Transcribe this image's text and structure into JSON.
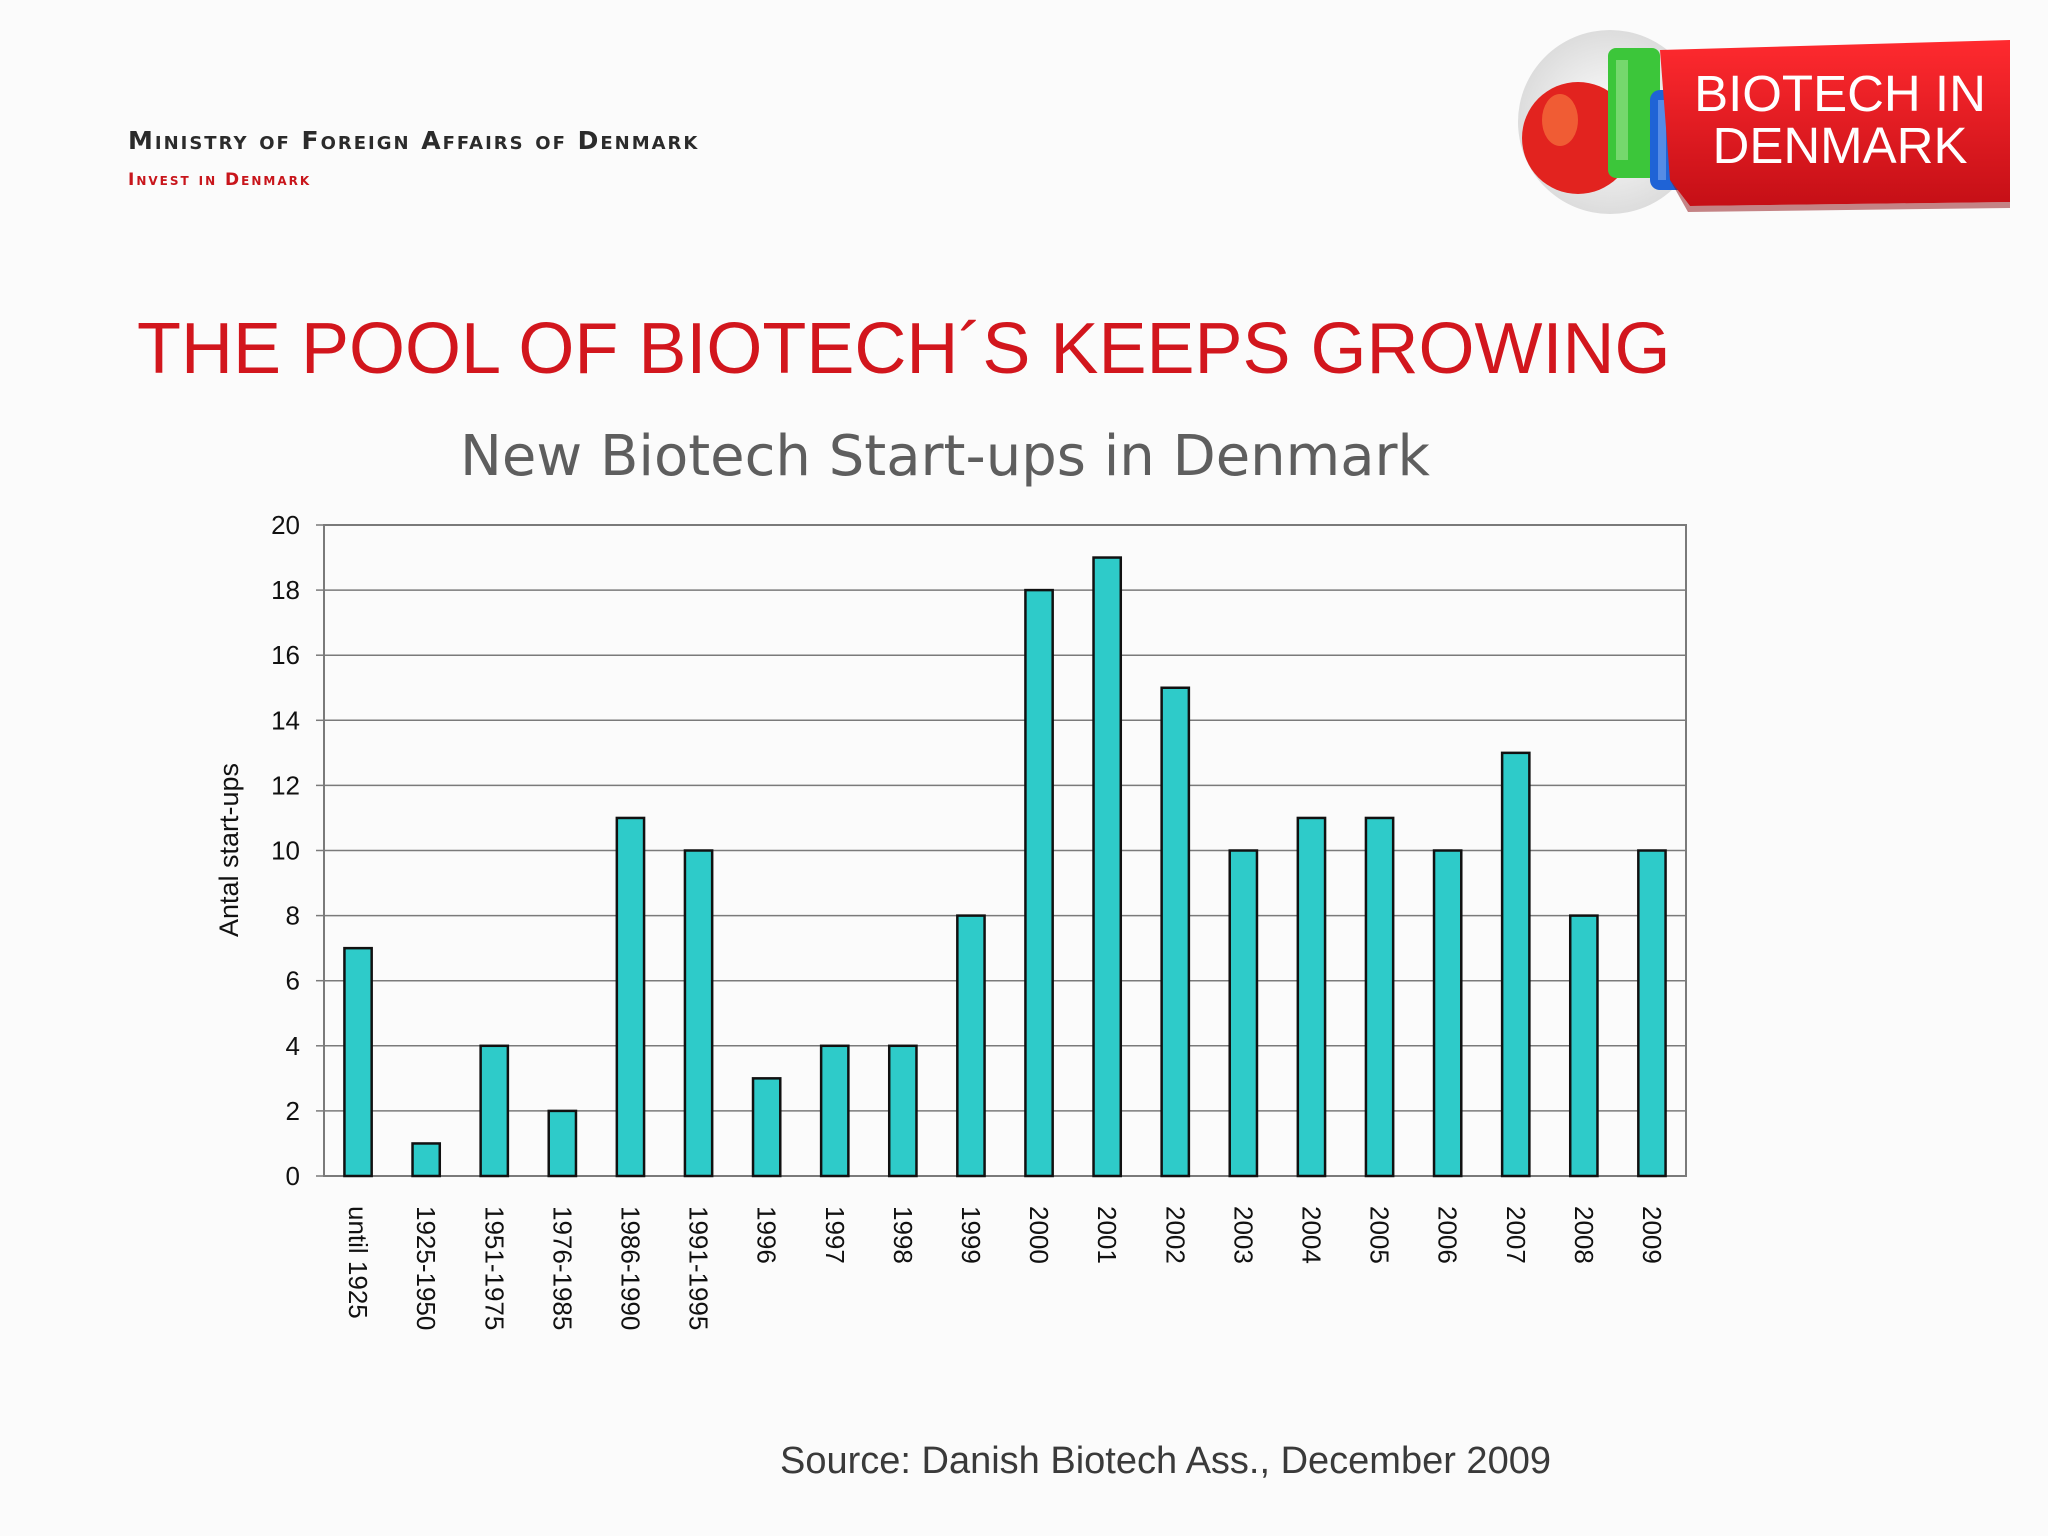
{
  "header": {
    "ministry": "Ministry of Foreign Affairs of Denmark",
    "invest": "Invest in Denmark",
    "badge_line1": "BIOTECH IN",
    "badge_line2": "DENMARK"
  },
  "colors": {
    "title_red": "#d2161d",
    "badge_red": "#e01620",
    "bar_fill": "#2ecbc9",
    "grid": "#7a7a7a"
  },
  "slide": {
    "title": "THE POOL OF BIOTECH´S KEEPS GROWING",
    "source": "Source: Danish Biotech Ass., December 2009"
  },
  "chart_data": {
    "type": "bar",
    "title": "New Biotech Start-ups in Denmark",
    "xlabel": "",
    "ylabel": "Antal start-ups",
    "ylim": [
      0,
      20
    ],
    "yticks": [
      0,
      2,
      4,
      6,
      8,
      10,
      12,
      14,
      16,
      18,
      20
    ],
    "grid": true,
    "categories": [
      "until 1925",
      "1925-1950",
      "1951-1975",
      "1976-1985",
      "1986-1990",
      "1991-1995",
      "1996",
      "1997",
      "1998",
      "1999",
      "2000",
      "2001",
      "2002",
      "2003",
      "2004",
      "2005",
      "2006",
      "2007",
      "2008",
      "2009"
    ],
    "values": [
      7,
      1,
      4,
      2,
      11,
      10,
      3,
      4,
      4,
      8,
      18,
      19,
      15,
      10,
      11,
      11,
      10,
      13,
      8,
      10
    ]
  }
}
